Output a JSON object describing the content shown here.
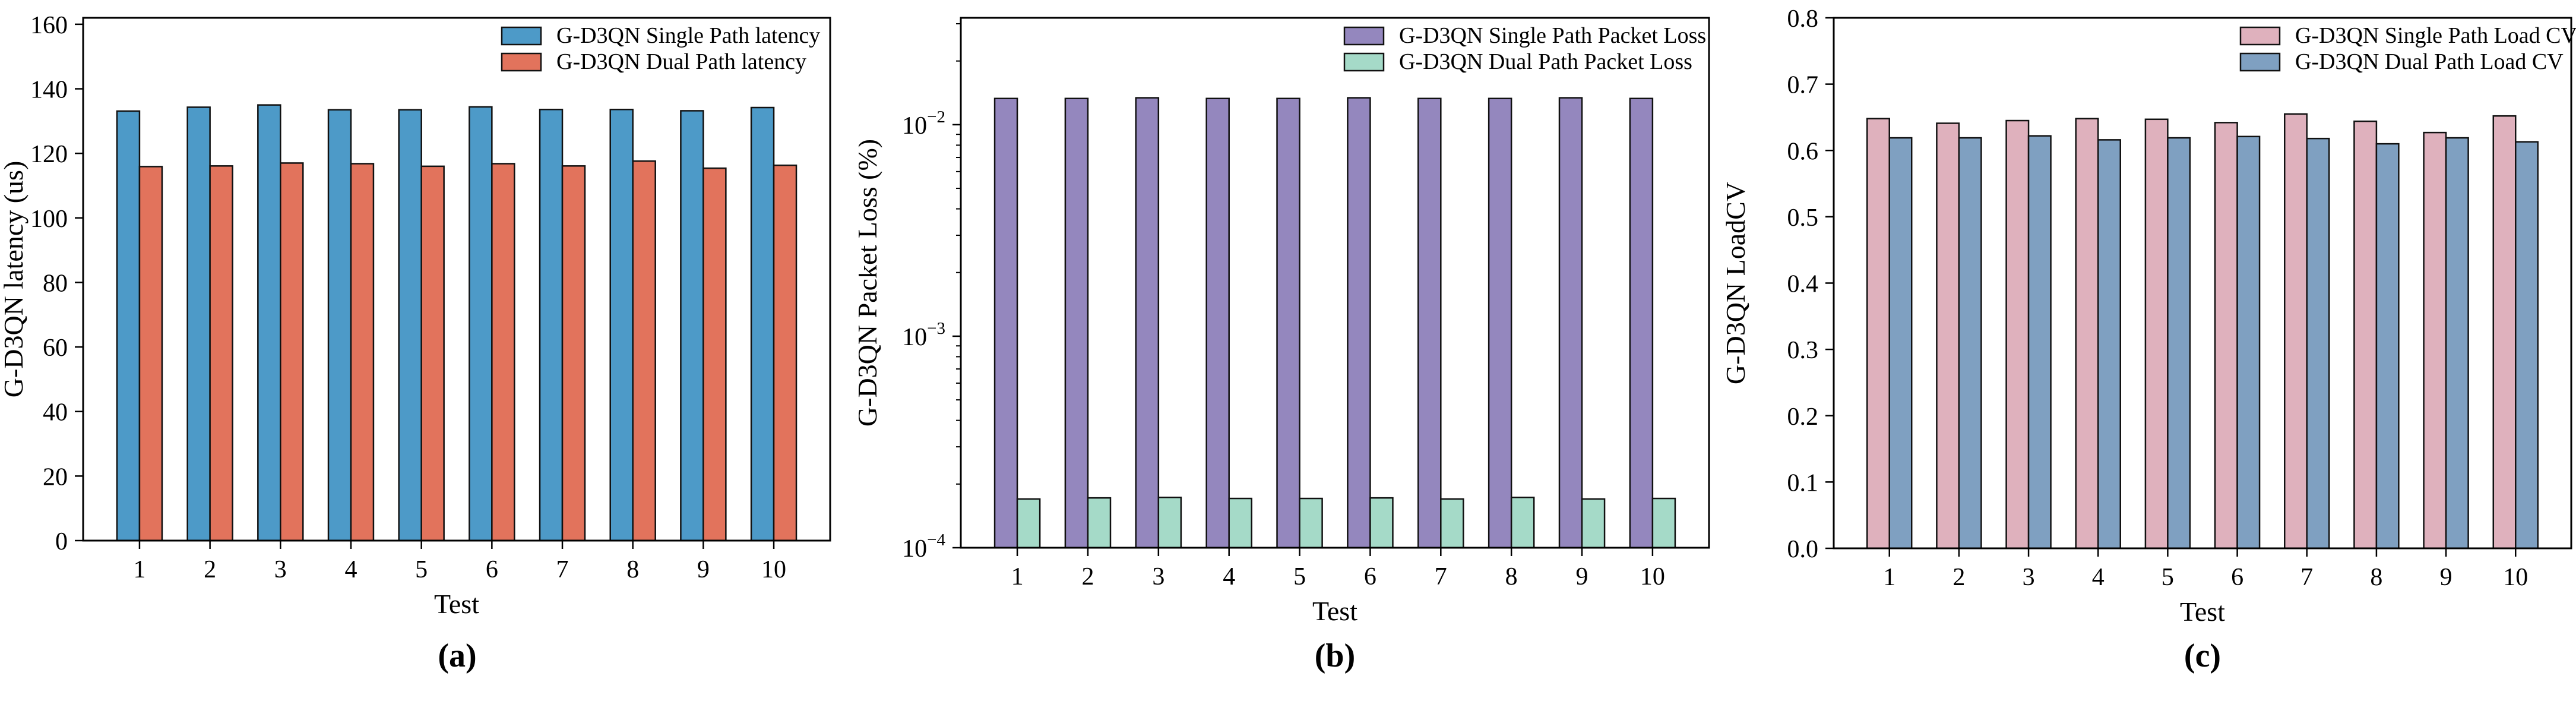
{
  "figure": {
    "background": "#ffffff",
    "axis_color": "#000000",
    "bar_edge_color": "#111111",
    "panels": [
      {
        "caption": "(a)"
      },
      {
        "caption": "(b)"
      },
      {
        "caption": "(c)"
      }
    ]
  },
  "chart_data": [
    {
      "type": "bar",
      "caption": "(a)",
      "title": "",
      "xlabel": "Test",
      "ylabel": "G-D3QN latency (us)",
      "categories": [
        "1",
        "2",
        "3",
        "4",
        "5",
        "6",
        "7",
        "8",
        "9",
        "10"
      ],
      "yscale": "linear",
      "ylim": [
        0,
        162
      ],
      "yticks": [
        {
          "v": 0,
          "label": "0"
        },
        {
          "v": 20,
          "label": "20"
        },
        {
          "v": 40,
          "label": "40"
        },
        {
          "v": 60,
          "label": "60"
        },
        {
          "v": 80,
          "label": "80"
        },
        {
          "v": 100,
          "label": "100"
        },
        {
          "v": 120,
          "label": "120"
        },
        {
          "v": 140,
          "label": "140"
        },
        {
          "v": 160,
          "label": "160"
        }
      ],
      "grid": false,
      "legend_position": "upper right",
      "series": [
        {
          "name": "G-D3QN Single Path latency",
          "color": "#4D9AC8",
          "values": [
            133.1,
            134.3,
            135.0,
            133.5,
            133.5,
            134.4,
            133.6,
            133.6,
            133.2,
            134.2
          ]
        },
        {
          "name": "G-D3QN Dual Path latency",
          "color": "#E2735C",
          "values": [
            115.9,
            116.1,
            117.0,
            116.8,
            116.0,
            116.8,
            116.1,
            117.6,
            115.4,
            116.3
          ]
        }
      ]
    },
    {
      "type": "bar",
      "caption": "(b)",
      "title": "",
      "xlabel": "Test",
      "ylabel": "G-D3QN Packet Loss (%)",
      "categories": [
        "1",
        "2",
        "3",
        "4",
        "5",
        "6",
        "7",
        "8",
        "9",
        "10"
      ],
      "yscale": "log",
      "ylim": [
        0.0001,
        0.032
      ],
      "yticks": [
        {
          "v": 0.01,
          "label": "10^-2"
        },
        {
          "v": 0.001,
          "label": "10^-3"
        },
        {
          "v": 0.0001,
          "label": "10^-4"
        }
      ],
      "grid": false,
      "legend_position": "upper right",
      "series": [
        {
          "name": "G-D3QN Single Path Packet Loss",
          "color": "#9487BE",
          "values": [
            0.0133,
            0.0133,
            0.0134,
            0.0133,
            0.0133,
            0.0134,
            0.0133,
            0.0133,
            0.0134,
            0.0133
          ]
        },
        {
          "name": "G-D3QN Dual Path Packet Loss",
          "color": "#A5DAC8",
          "values": [
            0.00017,
            0.000172,
            0.000173,
            0.000171,
            0.000171,
            0.000172,
            0.00017,
            0.000173,
            0.00017,
            0.000171
          ]
        }
      ]
    },
    {
      "type": "bar",
      "caption": "(c)",
      "title": "",
      "xlabel": "Test",
      "ylabel": "G-D3QN LoadCV",
      "categories": [
        "1",
        "2",
        "3",
        "4",
        "5",
        "6",
        "7",
        "8",
        "9",
        "10"
      ],
      "yscale": "linear",
      "ylim": [
        0,
        0.8
      ],
      "yticks": [
        {
          "v": 0.0,
          "label": "0.0"
        },
        {
          "v": 0.1,
          "label": "0.1"
        },
        {
          "v": 0.2,
          "label": "0.2"
        },
        {
          "v": 0.3,
          "label": "0.3"
        },
        {
          "v": 0.4,
          "label": "0.4"
        },
        {
          "v": 0.5,
          "label": "0.5"
        },
        {
          "v": 0.6,
          "label": "0.6"
        },
        {
          "v": 0.7,
          "label": "0.7"
        },
        {
          "v": 0.8,
          "label": "0.8"
        }
      ],
      "grid": false,
      "legend_position": "upper right",
      "series": [
        {
          "name": "G-D3QN Single Path Load CV",
          "color": "#DFB1BD",
          "values": [
            0.648,
            0.641,
            0.645,
            0.648,
            0.647,
            0.642,
            0.655,
            0.644,
            0.627,
            0.652
          ]
        },
        {
          "name": "G-D3QN Dual Path Load CV",
          "color": "#7FA0C1",
          "values": [
            0.619,
            0.619,
            0.622,
            0.616,
            0.619,
            0.621,
            0.618,
            0.61,
            0.619,
            0.613
          ]
        }
      ]
    }
  ]
}
